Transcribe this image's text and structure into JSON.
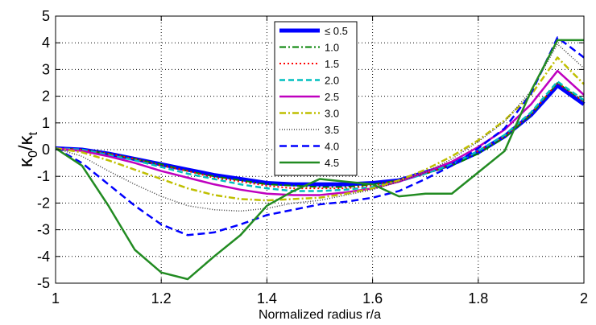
{
  "chart_data": {
    "type": "line",
    "title": "",
    "xlabel": "Normalized radius r/a",
    "ylabel": {
      "base": "κ",
      "sub0": "0",
      "slash": "/",
      "base2": "κ",
      "sub1": "t"
    },
    "xlim": [
      1,
      2
    ],
    "ylim": [
      -5,
      5
    ],
    "xticks": [
      1,
      1.2,
      1.4,
      1.6,
      1.8,
      2
    ],
    "yticks": [
      -5,
      -4,
      -3,
      -2,
      -1,
      0,
      1,
      2,
      3,
      4,
      5
    ],
    "grid": true,
    "legend_position": "top-center",
    "x": [
      1.0,
      1.05,
      1.1,
      1.15,
      1.2,
      1.25,
      1.3,
      1.35,
      1.4,
      1.45,
      1.5,
      1.55,
      1.6,
      1.65,
      1.7,
      1.75,
      1.8,
      1.85,
      1.9,
      1.95,
      2.0
    ],
    "series": [
      {
        "name": "≤ 0.5",
        "color": "#0000ff",
        "dash": "",
        "width": 5,
        "values": [
          0.05,
          0.0,
          -0.15,
          -0.35,
          -0.55,
          -0.75,
          -0.95,
          -1.1,
          -1.25,
          -1.3,
          -1.3,
          -1.3,
          -1.25,
          -1.15,
          -0.85,
          -0.55,
          -0.1,
          0.5,
          1.3,
          2.4,
          1.7
        ]
      },
      {
        "name": "1.0",
        "color": "#008000",
        "dash": "8,3,2,3",
        "width": 2,
        "values": [
          0.05,
          0.0,
          -0.15,
          -0.35,
          -0.55,
          -0.8,
          -1.0,
          -1.15,
          -1.3,
          -1.35,
          -1.4,
          -1.4,
          -1.3,
          -1.15,
          -0.9,
          -0.6,
          -0.15,
          0.45,
          1.3,
          2.5,
          1.8
        ]
      },
      {
        "name": "1.5",
        "color": "#ff0000",
        "dash": "2,3",
        "width": 2,
        "values": [
          0.05,
          0.0,
          -0.15,
          -0.35,
          -0.6,
          -0.8,
          -1.05,
          -1.2,
          -1.35,
          -1.45,
          -1.45,
          -1.45,
          -1.35,
          -1.15,
          -0.9,
          -0.55,
          -0.05,
          0.5,
          1.35,
          2.5,
          1.8
        ]
      },
      {
        "name": "2.0",
        "color": "#00bfbf",
        "dash": "7,4",
        "width": 2.5,
        "values": [
          0.05,
          0.0,
          -0.2,
          -0.4,
          -0.65,
          -0.9,
          -1.1,
          -1.3,
          -1.45,
          -1.55,
          -1.55,
          -1.5,
          -1.4,
          -1.2,
          -0.9,
          -0.55,
          -0.05,
          0.55,
          1.4,
          2.55,
          1.85
        ]
      },
      {
        "name": "2.5",
        "color": "#bf00bf",
        "dash": "",
        "width": 2.5,
        "values": [
          0.05,
          -0.05,
          -0.25,
          -0.5,
          -0.8,
          -1.05,
          -1.3,
          -1.5,
          -1.65,
          -1.7,
          -1.7,
          -1.6,
          -1.45,
          -1.2,
          -0.85,
          -0.45,
          0.1,
          0.75,
          1.7,
          2.95,
          2.05
        ]
      },
      {
        "name": "3.0",
        "color": "#bfbf00",
        "dash": "8,3,2,3",
        "width": 2.5,
        "values": [
          0.05,
          -0.1,
          -0.4,
          -0.75,
          -1.1,
          -1.45,
          -1.7,
          -1.85,
          -1.9,
          -1.85,
          -1.8,
          -1.65,
          -1.45,
          -1.15,
          -0.75,
          -0.25,
          0.35,
          1.1,
          2.05,
          3.45,
          2.45
        ]
      },
      {
        "name": "3.5",
        "color": "#404040",
        "dash": "1,2",
        "width": 1.5,
        "values": [
          0.05,
          -0.25,
          -0.8,
          -1.3,
          -1.75,
          -2.1,
          -2.25,
          -2.3,
          -2.2,
          -2.0,
          -1.9,
          -1.7,
          -1.5,
          -1.2,
          -0.85,
          -0.35,
          0.3,
          1.05,
          2.2,
          3.95,
          3.05
        ]
      },
      {
        "name": "4.0",
        "color": "#0000ff",
        "dash": "9,5",
        "width": 2.5,
        "values": [
          0.05,
          -0.5,
          -1.3,
          -2.1,
          -2.8,
          -3.2,
          -3.1,
          -2.8,
          -2.45,
          -2.25,
          -2.05,
          -1.95,
          -1.8,
          -1.55,
          -1.1,
          -0.6,
          0.05,
          0.8,
          2.1,
          4.2,
          3.45
        ]
      },
      {
        "name": "4.5",
        "color": "#228b22",
        "dash": "",
        "width": 2.5,
        "values": [
          0.05,
          -0.6,
          -2.1,
          -3.75,
          -4.6,
          -4.85,
          -4.0,
          -3.2,
          -2.1,
          -1.55,
          -1.1,
          -1.2,
          -1.3,
          -1.75,
          -1.65,
          -1.65,
          -0.85,
          -0.05,
          2.2,
          4.1,
          4.1
        ]
      }
    ]
  }
}
